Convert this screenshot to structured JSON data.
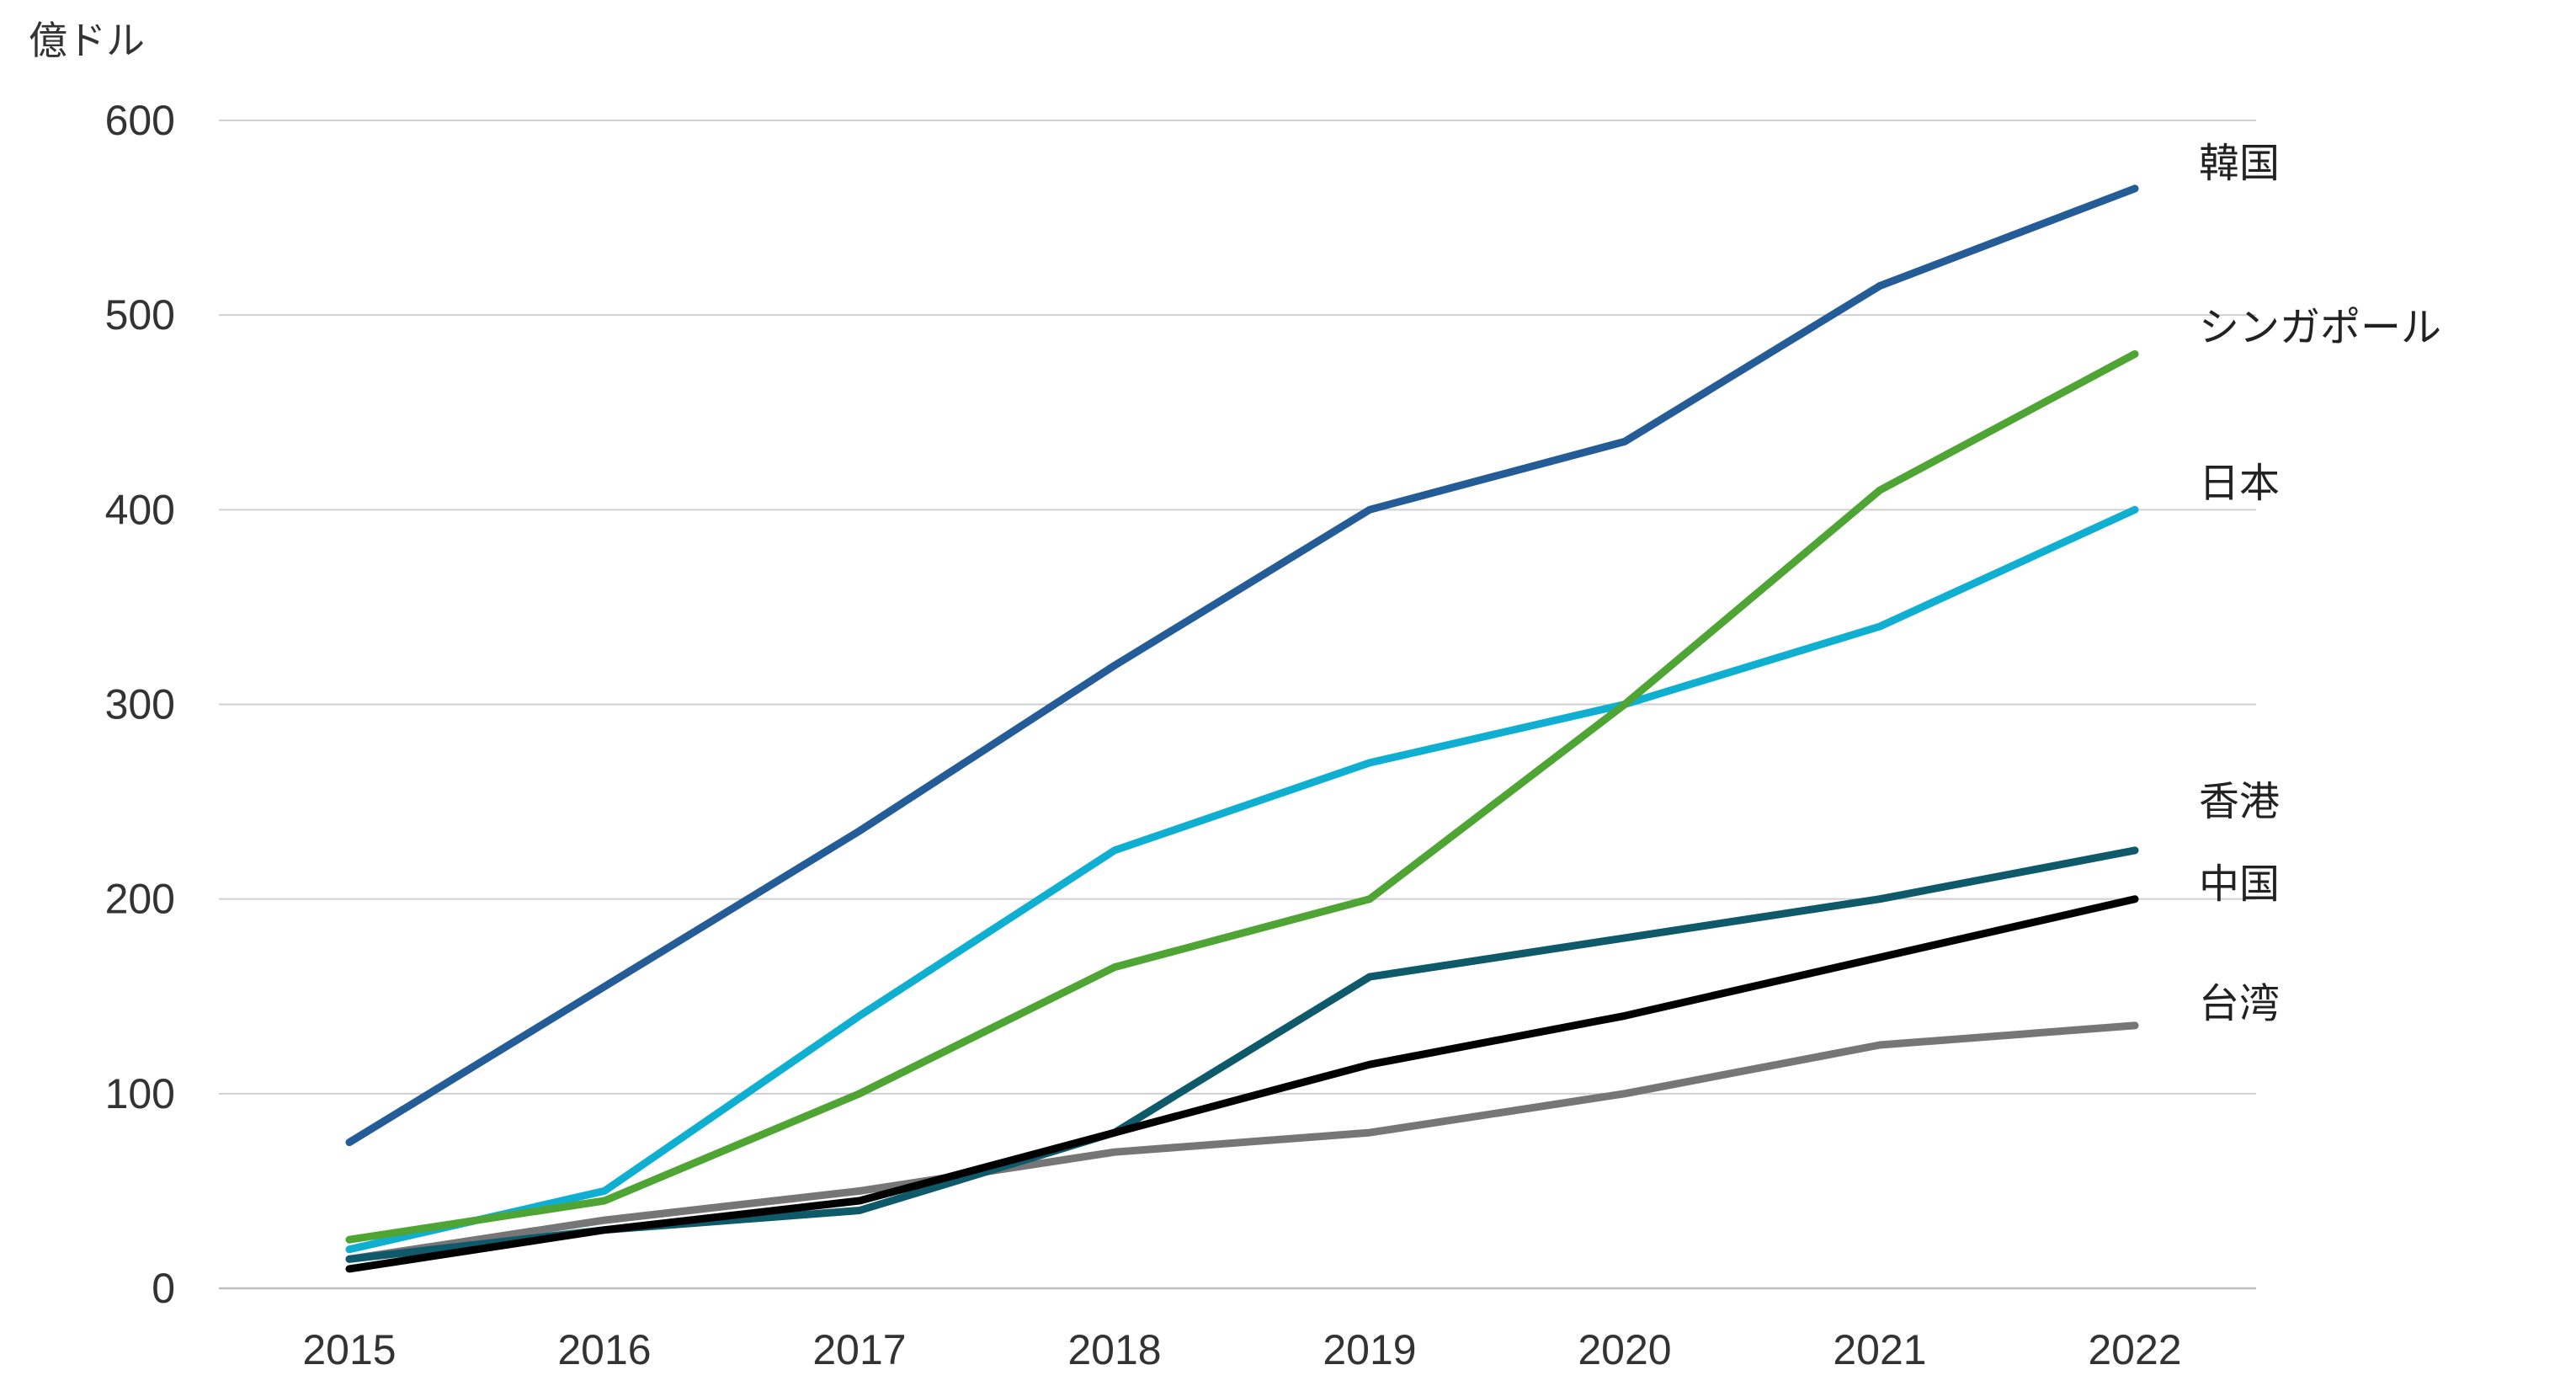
{
  "chart_data": {
    "type": "line",
    "title": "",
    "ylabel": "億ドル",
    "xlabel": "",
    "ylim": [
      0,
      600
    ],
    "yticks": [
      0,
      100,
      200,
      300,
      400,
      500,
      600
    ],
    "ytick_labels": [
      "0",
      "100",
      "200",
      "300",
      "400",
      "500",
      "600"
    ],
    "grid": true,
    "categories": [
      "2015",
      "2016",
      "2017",
      "2018",
      "2019",
      "2020",
      "2021",
      "2022"
    ],
    "series": [
      {
        "name": "台湾",
        "color": "#767676",
        "values": [
          15,
          35,
          50,
          70,
          80,
          100,
          125,
          135
        ]
      },
      {
        "name": "香港",
        "color": "#0e5a6b",
        "values": [
          15,
          30,
          40,
          80,
          160,
          180,
          200,
          225
        ]
      },
      {
        "name": "日本",
        "color": "#0eafd1",
        "values": [
          20,
          50,
          140,
          225,
          270,
          300,
          340,
          400
        ]
      },
      {
        "name": "シンガポール",
        "color": "#4fa534",
        "values": [
          25,
          45,
          100,
          165,
          200,
          300,
          410,
          480
        ]
      },
      {
        "name": "中国",
        "color": "#000000",
        "values": [
          10,
          30,
          45,
          80,
          115,
          140,
          170,
          200
        ]
      },
      {
        "name": "韓国",
        "color": "#245c97",
        "values": [
          75,
          155,
          235,
          320,
          400,
          435,
          515,
          565
        ]
      }
    ]
  }
}
